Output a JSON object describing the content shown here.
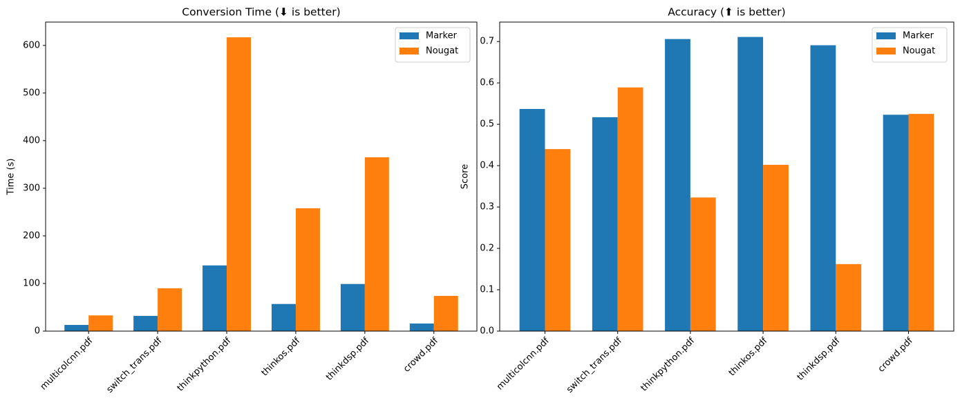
{
  "chart_data": [
    {
      "type": "bar",
      "title": "Conversion Time (⬇ is better)",
      "y_label": "Time (s)",
      "categories": [
        "multicolcnn.pdf",
        "switch_trans.pdf",
        "thinkpython.pdf",
        "thinkos.pdf",
        "thinkdsp.pdf",
        "crowd.pdf"
      ],
      "series": [
        {
          "name": "Marker",
          "color": "#1f77b4",
          "values": [
            13,
            32,
            138,
            57,
            99,
            16
          ]
        },
        {
          "name": "Nougat",
          "color": "#ff7f0e",
          "values": [
            33,
            90,
            617,
            258,
            365,
            74
          ]
        }
      ],
      "ylim": [
        0,
        649
      ],
      "yticks": [
        0,
        100,
        200,
        300,
        400,
        500,
        600
      ],
      "legend": "upper right"
    },
    {
      "type": "bar",
      "title": "Accuracy (⬆ is better)",
      "y_label": "Score",
      "categories": [
        "multicolcnn.pdf",
        "switch_trans.pdf",
        "thinkpython.pdf",
        "thinkos.pdf",
        "thinkdsp.pdf",
        "crowd.pdf"
      ],
      "series": [
        {
          "name": "Marker",
          "color": "#1f77b4",
          "values": [
            0.537,
            0.517,
            0.706,
            0.711,
            0.691,
            0.523
          ]
        },
        {
          "name": "Nougat",
          "color": "#ff7f0e",
          "values": [
            0.44,
            0.589,
            0.323,
            0.402,
            0.162,
            0.525
          ]
        }
      ],
      "ylim": [
        0,
        0.747
      ],
      "yticks": [
        {
          "value": 0,
          "label": "0.0"
        },
        0.1,
        0.2,
        0.3,
        0.4,
        0.5,
        0.6,
        0.7
      ],
      "legend": "upper right"
    }
  ]
}
